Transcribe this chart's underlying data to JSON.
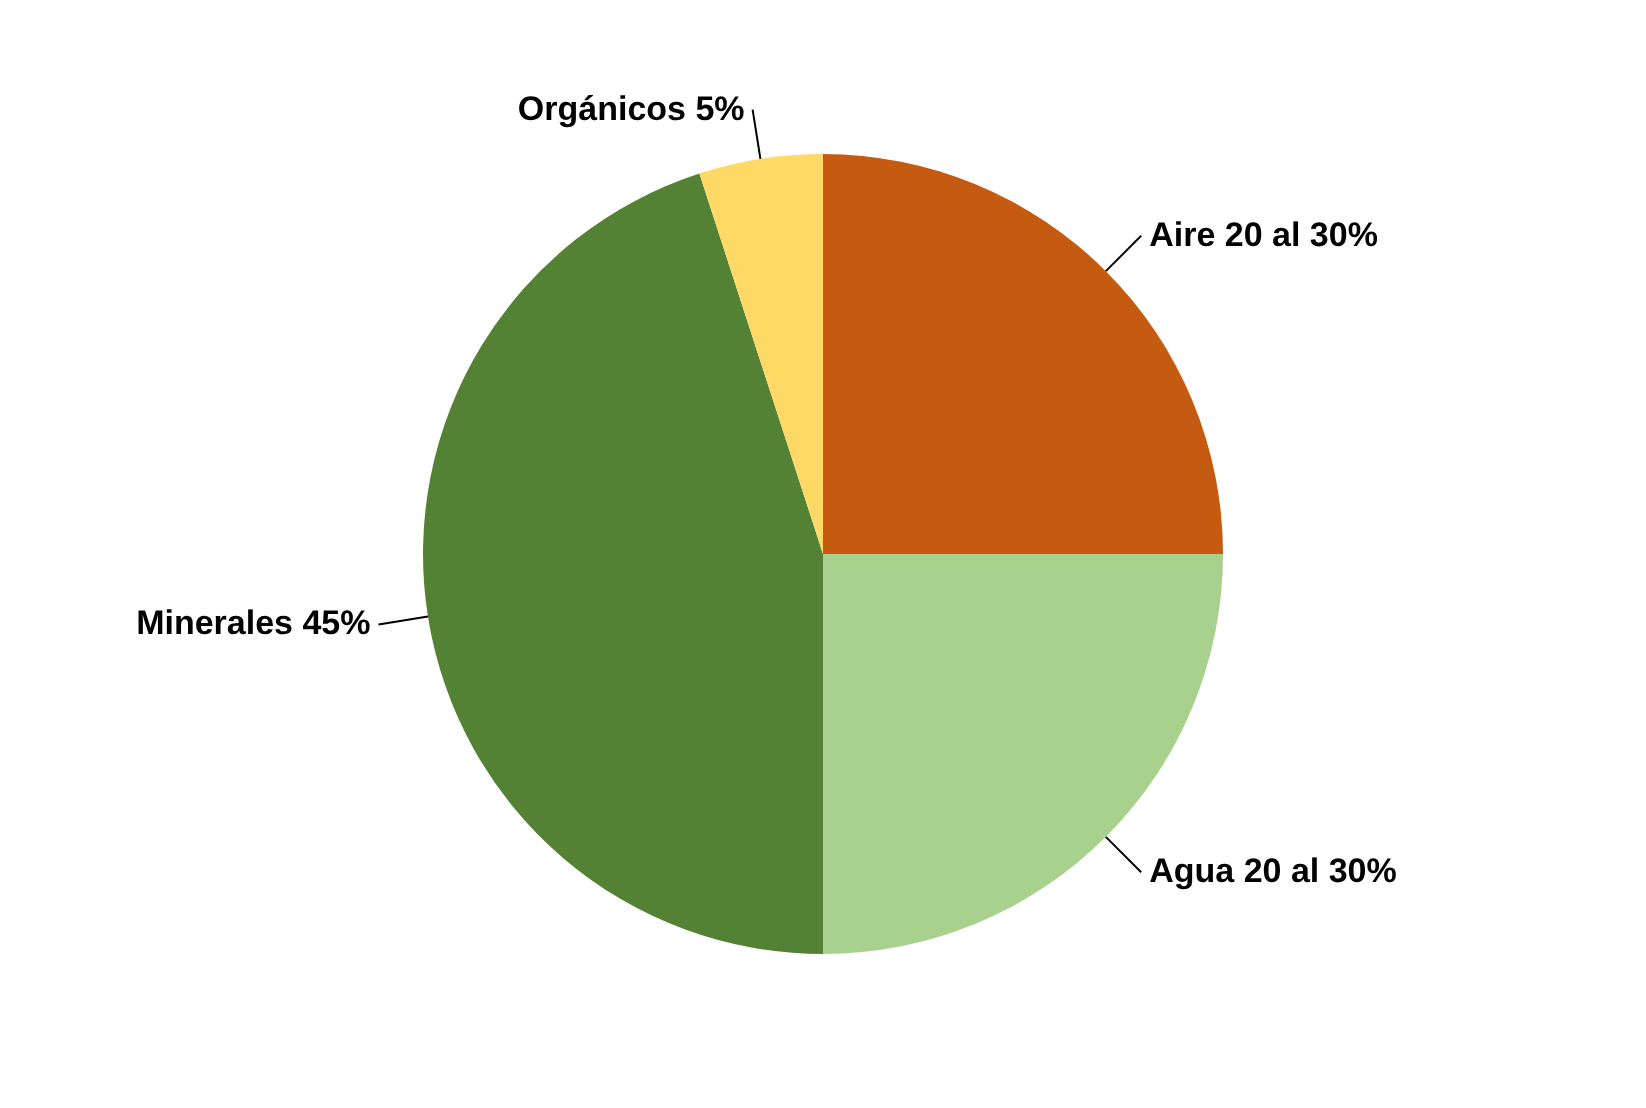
{
  "chart_data": {
    "type": "pie",
    "categories": [
      "Aire 20 al 30%",
      "Agua 20 al 30%",
      "Minerales 45%",
      "Orgánicos 5%"
    ],
    "values": [
      25,
      25,
      45,
      5
    ],
    "colors": [
      "#c55a11",
      "#a9d18e",
      "#548235",
      "#ffd966"
    ]
  }
}
